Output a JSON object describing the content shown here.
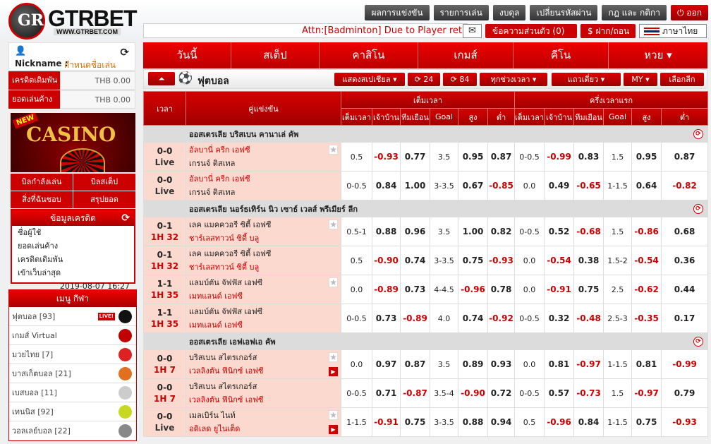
{
  "logo": {
    "name": "GTRBET",
    "url": "WWW.GTRBET.COM",
    "mark": "GR"
  },
  "top_buttons": [
    "ผลการแข่งขัน",
    "รายการเล่น",
    "งบดุล",
    "เปลี่ยนรหัสผ่าน",
    "กฎ และ กติกา"
  ],
  "logout": "⏻ ออก",
  "marquee": "Attn:[Badminton] Due to Player retir",
  "messages": "ข้อความส่วนตัว (0)",
  "deposit": "ฝาก/ถอน",
  "deposit_symbol": "$",
  "language": "ภาษาไทย",
  "user": {
    "nickname_label": "Nickname :",
    "nickname_value": "กำหนดชื่อเล่น"
  },
  "credit": [
    {
      "label": "เครดิตเดิมพัน",
      "value": "THB 0.00"
    },
    {
      "label": "ยอดเล่นค้าง",
      "value": "THB 0.00"
    }
  ],
  "casino_banner": {
    "badge": "NEW",
    "title": "CASINO"
  },
  "quick_links": [
    "บิลกำลังเล่น",
    "บิลสเต็ป",
    "สิ่งที่ฉันชอบ",
    "สรุปยอด"
  ],
  "credit_info": {
    "title": "ข้อมูลเครดิต",
    "rows": [
      "ชื่อผู้ใช้",
      "ยอดเล่นค้าง",
      "เครดิตเดิมพัน",
      "เข้าเว็บล่าสุด"
    ],
    "last_login": "2019-08-07 16:27"
  },
  "sports_menu": {
    "title": "เมนู กีฬา",
    "live_badge": "LIVE!",
    "items": [
      {
        "label": "ฟุตบอล [93]",
        "icon": "soccer-ball-icon",
        "color": "#111111"
      },
      {
        "label": "เกมส์ Virtual",
        "icon": "virtual-games-icon",
        "color": "#c00000"
      },
      {
        "label": "มวยไทย [7]",
        "icon": "boxing-glove-icon",
        "color": "#dd2222"
      },
      {
        "label": "บาสเก็ตบอล [21]",
        "icon": "basketball-icon",
        "color": "#e07020"
      },
      {
        "label": "เบสบอล [11]",
        "icon": "baseball-icon",
        "color": "#cccccc"
      },
      {
        "label": "เทนนิส [92]",
        "icon": "tennis-ball-icon",
        "color": "#c8d820"
      },
      {
        "label": "วอลเลย์บอล [22]",
        "icon": "volleyball-icon",
        "color": "#888888"
      }
    ]
  },
  "nav": [
    "วันนี้",
    "สเต็ป",
    "คาสิโน",
    "เกมส์",
    "คีโน",
    "หวย ▾"
  ],
  "subbar": {
    "up": "⏶",
    "sport": "ฟุตบอล",
    "filters": [
      "แสดงสเปเชียล ▾",
      "⟳ 24",
      "⟳ 84",
      "ทุกช่วงเวลา ▾",
      "แถวเดี่ยว ▾",
      "MY ▾",
      "เลือกลีก"
    ]
  },
  "table": {
    "h_time": "เวลา",
    "h_match": "คู่แข่งขัน",
    "h_full": "เต็มเวลา",
    "h_half": "ครึ่งเวลาแรก",
    "sub": [
      "เต็มเวลา",
      "เจ้าบ้าน",
      "ทีมเยือน",
      "Goal",
      "สูง",
      "ต่ำ",
      "เต็มเวลา",
      "เจ้าบ้าน",
      "ทีมเยือน",
      "Goal",
      "สูง",
      "ต่ำ"
    ]
  },
  "leagues": [
    {
      "name": "ออสเตรเลีย บริสเบน คานาเล่ คัพ",
      "matches": [
        {
          "score": "0-0",
          "time": "Live",
          "home": "อัลบานี่ ครีก เอฟซี",
          "away": "เกรนจ์ ติสเทล",
          "fav": "home",
          "star": true,
          "tv": false,
          "odds": [
            "0.5",
            "-0.93",
            "0.77",
            "3.5",
            "0.95",
            "0.87",
            "0-0.5",
            "-0.99",
            "0.83",
            "1.5",
            "0.95",
            "0.87"
          ]
        },
        {
          "score": "0-0",
          "time": "Live",
          "home": "อัลบานี่ ครีก เอฟซี",
          "away": "เกรนจ์ ติสเทล",
          "fav": "home",
          "star": false,
          "tv": false,
          "odds": [
            "0-0.5",
            "0.84",
            "1.00",
            "3-3.5",
            "0.67",
            "-0.85",
            "0.0",
            "0.49",
            "-0.65",
            "1-1.5",
            "0.64",
            "-0.82"
          ]
        }
      ]
    },
    {
      "name": "ออสเตรเลีย นอร์ธเทิร์น นิว เซาธ์ เวลส์ พรีเมียร์ ลีก",
      "matches": [
        {
          "score": "0-1",
          "time": "1H 32",
          "home": "เลค แมคควอรี ซิตี้ เอฟซี",
          "away": "ชาร์เลสทาวน์ ซิตี้ บลู",
          "fav": "away",
          "star": true,
          "tv": false,
          "odds": [
            "0.5-1",
            "0.88",
            "0.96",
            "3.5",
            "1.00",
            "0.82",
            "0-0.5",
            "0.52",
            "-0.68",
            "1.5",
            "-0.86",
            "0.68"
          ]
        },
        {
          "score": "0-1",
          "time": "1H 32",
          "home": "เลค แมคควอรี ซิตี้ เอฟซี",
          "away": "ชาร์เลสทาวน์ ซิตี้ บลู",
          "fav": "away",
          "star": false,
          "tv": false,
          "odds": [
            "0.5",
            "-0.90",
            "0.74",
            "3-3.5",
            "0.75",
            "-0.93",
            "0.0",
            "-0.54",
            "0.38",
            "1.5-2",
            "-0.54",
            "0.36"
          ]
        },
        {
          "score": "1-1",
          "time": "1H 35",
          "home": "แลมบ์ตัน จัฟฟัส เอฟซี",
          "away": "เมทแลนด์ เอฟซี",
          "fav": "away",
          "star": true,
          "tv": false,
          "odds": [
            "0.0",
            "-0.89",
            "0.73",
            "4-4.5",
            "-0.96",
            "0.78",
            "0.0",
            "-0.91",
            "0.75",
            "2.5",
            "-0.62",
            "0.44"
          ]
        },
        {
          "score": "1-1",
          "time": "1H 35",
          "home": "แลมบ์ตัน จัฟฟัส เอฟซี",
          "away": "เมทแลนด์ เอฟซี",
          "fav": "away",
          "star": false,
          "tv": false,
          "odds": [
            "0-0.5",
            "0.73",
            "-0.89",
            "4.0",
            "0.74",
            "-0.92",
            "0-0.5",
            "0.32",
            "-0.48",
            "2.5-3",
            "-0.35",
            "0.17"
          ]
        }
      ]
    },
    {
      "name": "ออสเตรเลีย เอฟเอฟเอ คัพ",
      "matches": [
        {
          "score": "0-0",
          "time": "1H 7",
          "home": "บริสเบน สไตรเกอร์ส",
          "away": "เวลลิงตัน ฟีนิกซ์ เอฟซี",
          "fav": "away",
          "star": true,
          "tv": true,
          "odds": [
            "0.0",
            "0.97",
            "0.87",
            "3.5",
            "0.89",
            "0.93",
            "0.0",
            "0.81",
            "-0.97",
            "1-1.5",
            "0.81",
            "-0.99"
          ]
        },
        {
          "score": "0-0",
          "time": "1H 7",
          "home": "บริสเบน สไตรเกอร์ส",
          "away": "เวลลิงตัน ฟีนิกซ์ เอฟซี",
          "fav": "away",
          "star": false,
          "tv": false,
          "odds": [
            "0-0.5",
            "0.71",
            "-0.87",
            "3.5-4",
            "-0.90",
            "0.72",
            "0-0.5",
            "0.57",
            "-0.73",
            "1.5",
            "-0.97",
            "0.79"
          ]
        },
        {
          "score": "0-0",
          "time": "Live",
          "home": "เมลเบิร์น ไนท์",
          "away": "อดิเลด ยูไนเต็ด",
          "fav": "away",
          "star": true,
          "tv": true,
          "odds": [
            "1-1.5",
            "-0.91",
            "0.75",
            "3-3.5",
            "0.88",
            "0.94",
            "0.5",
            "-0.96",
            "0.84",
            "1-1.5",
            "0.75",
            "-0.93"
          ]
        }
      ]
    }
  ]
}
